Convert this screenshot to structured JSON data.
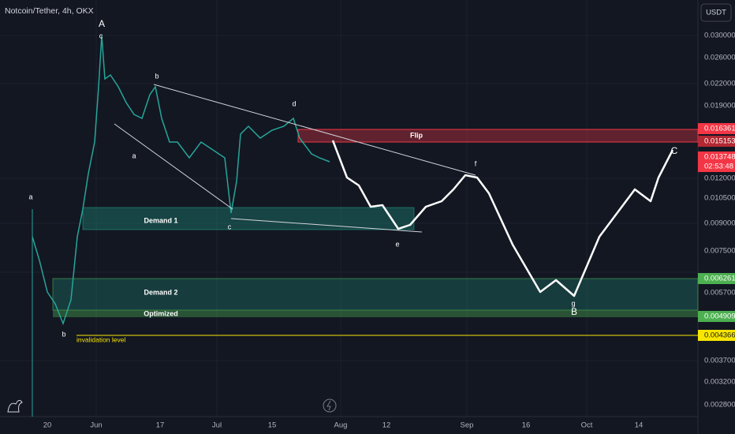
{
  "header": {
    "symbol": "Notcoin/Tether, 4h, OKX",
    "currency": "USDT"
  },
  "price_axis": [
    "0.030000",
    "0.026000",
    "0.022000",
    "0.019000",
    "0.012000",
    "0.010500",
    "0.009000",
    "0.007500",
    "0.005700",
    "0.003700",
    "0.003200",
    "0.002800"
  ],
  "price_tags": {
    "flip_top": "0.016361",
    "flip_bottom": "0.015153",
    "last": "0.013748",
    "countdown": "02:53:48",
    "demand_top": "0.006261",
    "optimized": "0.004909",
    "invalidation": "0.004366"
  },
  "time_axis": [
    "20",
    "Jun",
    "17",
    "Jul",
    "15",
    "Aug",
    "12",
    "Sep",
    "16",
    "Oct",
    "14"
  ],
  "zones": {
    "flip": "Flip",
    "demand1": "Demand 1",
    "demand2": "Demand 2",
    "optimized": "Optimized",
    "invalidation": "invalidation level"
  },
  "waves": {
    "A": "A",
    "A_c": "c",
    "b1": "b",
    "a1": "a",
    "d": "d",
    "c1": "c",
    "e": "e",
    "f": "f",
    "g": "g",
    "B": "B",
    "C": "C",
    "a0": "a",
    "b0": "b"
  }
}
